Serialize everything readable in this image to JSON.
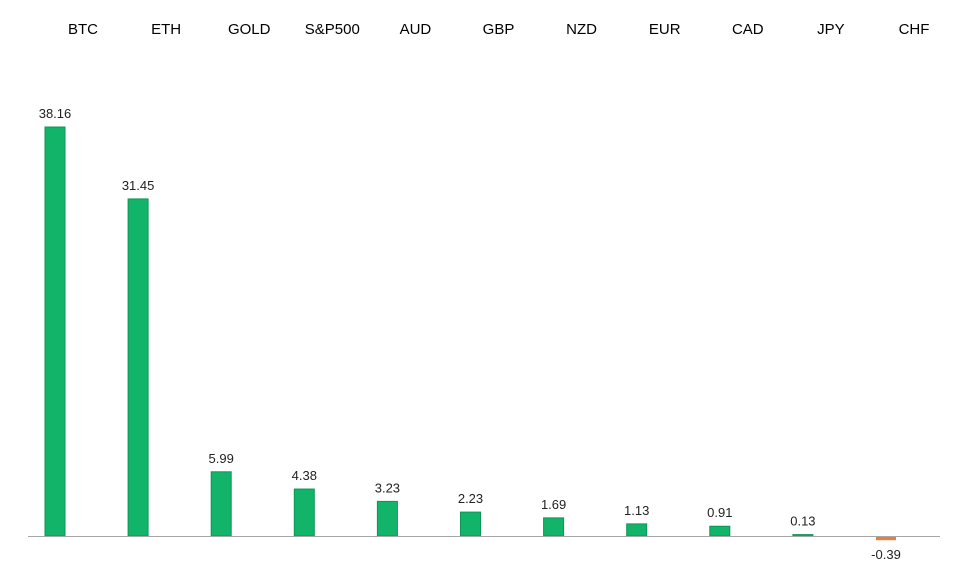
{
  "chart_data": {
    "type": "bar",
    "title": "",
    "xlabel": "",
    "ylabel": "",
    "categories": [
      "BTC",
      "ETH",
      "GOLD",
      "S&P500",
      "AUD",
      "GBP",
      "NZD",
      "EUR",
      "CAD",
      "JPY",
      "CHF"
    ],
    "values": [
      38.16,
      31.45,
      5.99,
      4.38,
      3.23,
      2.23,
      1.69,
      1.13,
      0.91,
      0.13,
      -0.39
    ],
    "value_labels": [
      "38.16",
      "31.45",
      "5.99",
      "4.38",
      "3.23",
      "2.23",
      "1.69",
      "1.13",
      "0.91",
      "0.13",
      "-0.39"
    ],
    "ylim": [
      -0.5,
      38.16
    ],
    "grid": false,
    "legend": "none",
    "category_axis_position": "top",
    "colors": {
      "positive": "#12b46a",
      "positive_edge": "#0e9556",
      "negative": "#ed7d31",
      "axis": "#a6a6a6"
    }
  }
}
